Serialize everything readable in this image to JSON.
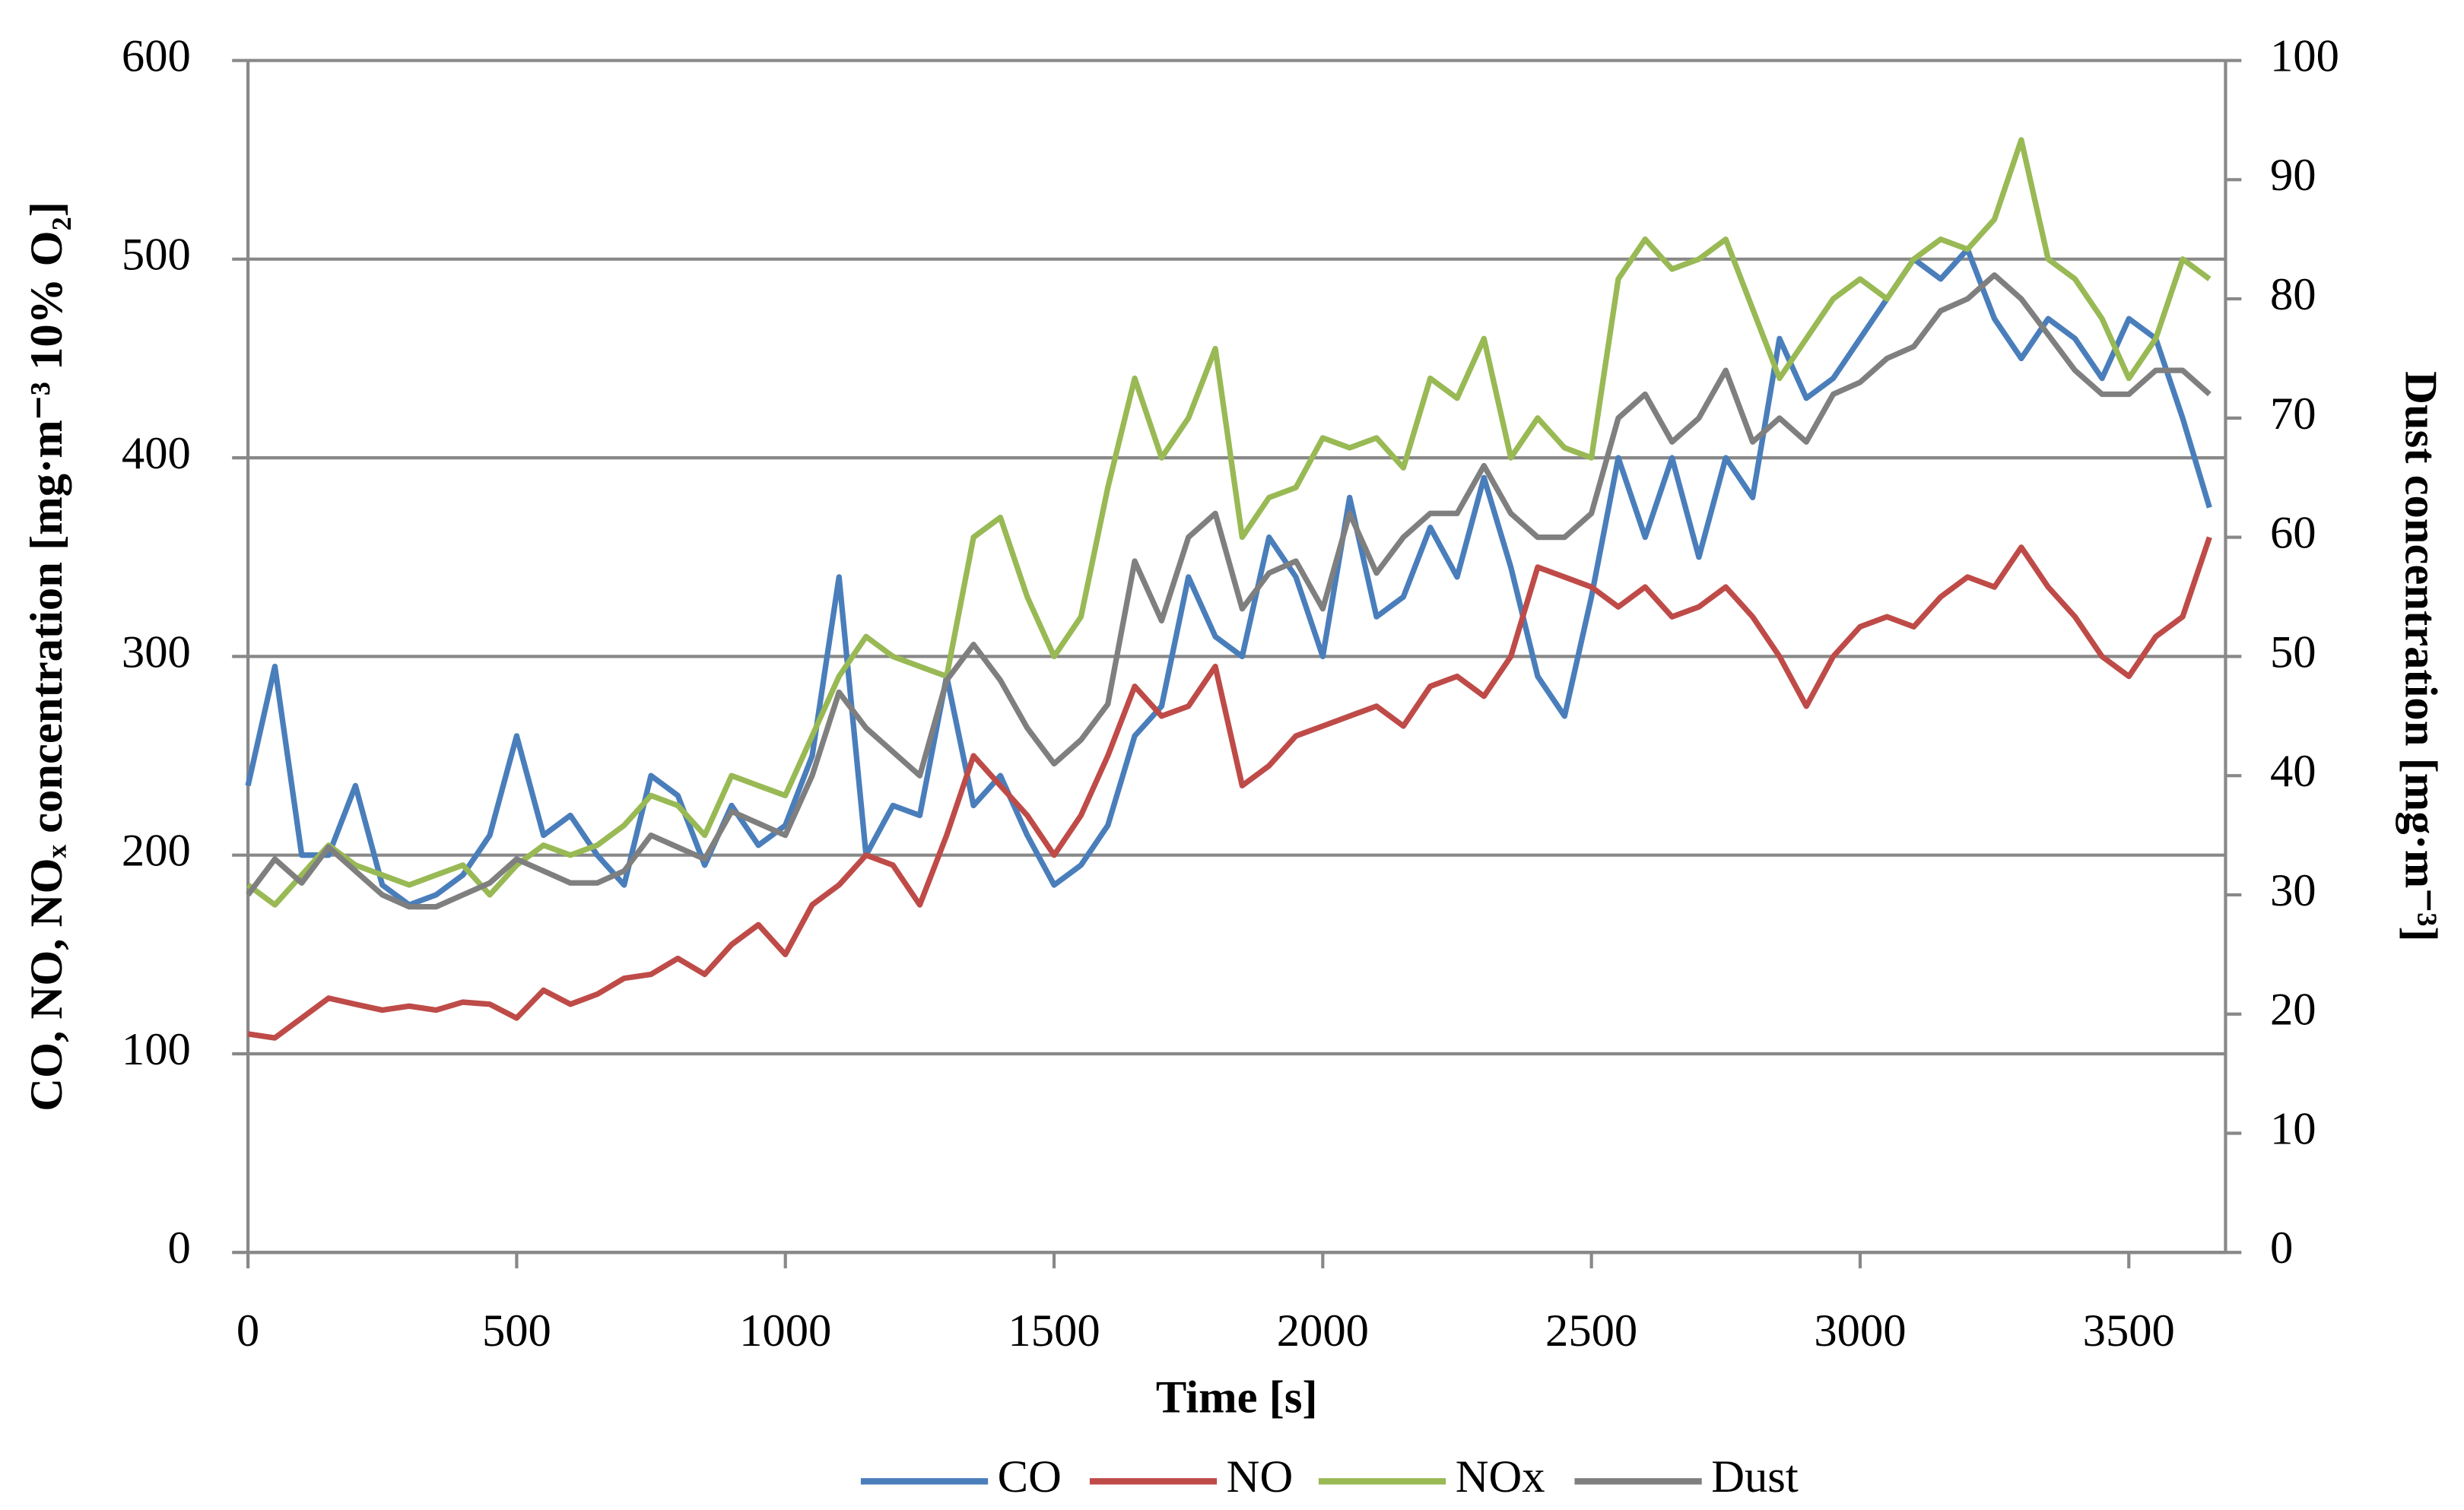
{
  "chart_data": {
    "type": "line",
    "x_label": "Time [s]",
    "y_label": "CO, NO, NOₓ concentration [mg·m⁻³ 10% O₂]",
    "y2_label": "Dust concentration [mg·m⁻³]",
    "x": [
      0,
      50,
      100,
      150,
      200,
      250,
      300,
      350,
      400,
      450,
      500,
      550,
      600,
      650,
      700,
      750,
      800,
      850,
      900,
      950,
      1000,
      1050,
      1100,
      1150,
      1200,
      1250,
      1300,
      1350,
      1400,
      1450,
      1500,
      1550,
      1600,
      1650,
      1700,
      1750,
      1800,
      1850,
      1900,
      1950,
      2000,
      2050,
      2100,
      2150,
      2200,
      2250,
      2300,
      2350,
      2400,
      2450,
      2500,
      2550,
      2600,
      2650,
      2700,
      2750,
      2800,
      2850,
      2900,
      2950,
      3000,
      3050,
      3100,
      3150,
      3200,
      3250,
      3300,
      3350,
      3400,
      3450,
      3500,
      3550,
      3600,
      3650
    ],
    "series": [
      {
        "name": "CO",
        "color": "#4a7ebb",
        "values": [
          235,
          295,
          200,
          200,
          235,
          185,
          175,
          180,
          190,
          210,
          260,
          210,
          220,
          200,
          185,
          240,
          230,
          195,
          225,
          205,
          215,
          250,
          340,
          200,
          225,
          220,
          290,
          225,
          240,
          210,
          185,
          195,
          215,
          260,
          275,
          340,
          310,
          300,
          360,
          340,
          300,
          380,
          320,
          330,
          365,
          340,
          390,
          345,
          290,
          270,
          330,
          400,
          360,
          400,
          350,
          400,
          380,
          460,
          430,
          440,
          460,
          480,
          500,
          490,
          505,
          470,
          450,
          470,
          460,
          440,
          470,
          460,
          420,
          375
        ]
      },
      {
        "name": "NO",
        "color": "#be4b48",
        "values": [
          110,
          108,
          118,
          128,
          125,
          122,
          124,
          122,
          126,
          125,
          118,
          132,
          125,
          130,
          138,
          140,
          148,
          140,
          155,
          165,
          150,
          175,
          185,
          200,
          195,
          175,
          210,
          250,
          235,
          220,
          200,
          220,
          250,
          285,
          270,
          275,
          295,
          235,
          245,
          260,
          265,
          270,
          275,
          265,
          285,
          290,
          280,
          300,
          345,
          340,
          335,
          325,
          335,
          320,
          325,
          335,
          320,
          300,
          275,
          300,
          315,
          320,
          315,
          330,
          340,
          335,
          355,
          335,
          320,
          300,
          290,
          310,
          320,
          360
        ]
      },
      {
        "name": "NOx",
        "color": "#98b954",
        "values": [
          185,
          175,
          190,
          205,
          195,
          190,
          185,
          190,
          195,
          180,
          195,
          205,
          200,
          205,
          215,
          230,
          225,
          210,
          240,
          235,
          230,
          260,
          290,
          310,
          300,
          295,
          290,
          360,
          370,
          330,
          300,
          320,
          385,
          440,
          400,
          420,
          455,
          360,
          380,
          385,
          410,
          405,
          410,
          395,
          440,
          430,
          460,
          400,
          420,
          405,
          400,
          490,
          510,
          495,
          500,
          510,
          475,
          440,
          460,
          480,
          490,
          480,
          500,
          510,
          505,
          520,
          560,
          500,
          490,
          470,
          440,
          460,
          500,
          490
        ]
      },
      {
        "name": "Dust",
        "color": "#7f7f7f",
        "axis": "y2",
        "values": [
          30,
          33,
          31,
          34,
          32,
          30,
          29,
          29,
          30,
          31,
          33,
          32,
          31,
          31,
          32,
          35,
          34,
          33,
          37,
          36,
          35,
          40,
          47,
          44,
          42,
          40,
          48,
          51,
          48,
          44,
          41,
          43,
          46,
          58,
          53,
          60,
          62,
          54,
          57,
          58,
          54,
          62,
          57,
          60,
          62,
          62,
          66,
          62,
          60,
          60,
          62,
          70,
          72,
          68,
          70,
          74,
          68,
          70,
          68,
          72,
          73,
          75,
          76,
          79,
          80,
          82,
          80,
          77,
          74,
          72,
          72,
          74,
          74,
          72
        ]
      }
    ],
    "xlim": [
      0,
      3680
    ],
    "xticks": [
      0,
      500,
      1000,
      1500,
      2000,
      2500,
      3000,
      3500
    ],
    "ylim": [
      0,
      600
    ],
    "yticks": [
      0,
      100,
      200,
      300,
      400,
      500,
      600
    ],
    "y2lim": [
      0,
      100
    ],
    "y2ticks": [
      0,
      10,
      20,
      30,
      40,
      50,
      60,
      70,
      80,
      90,
      100
    ],
    "grid": true,
    "legend": "bottom"
  }
}
